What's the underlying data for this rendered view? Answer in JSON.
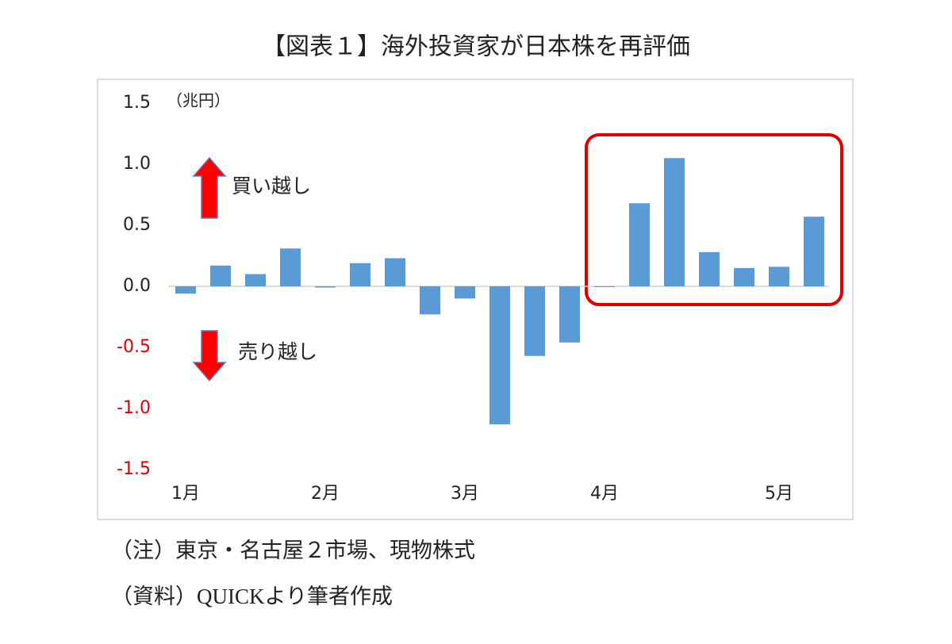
{
  "chart_data": {
    "type": "bar",
    "title": "【図表１】海外投資家が日本株を再評価",
    "unit_label": "（兆円）",
    "annotations": [
      "買い越し",
      "売り越し"
    ],
    "notes": [
      "（注）東京・名古屋２市場、現物株式",
      "（資料）QUICKより筆者作成"
    ],
    "categories": [
      "1月",
      null,
      null,
      null,
      "2月",
      null,
      null,
      null,
      "3月",
      null,
      null,
      null,
      "4月",
      null,
      null,
      null,
      null,
      "5月",
      null
    ],
    "values": [
      -0.06,
      0.17,
      0.1,
      0.31,
      -0.01,
      0.19,
      0.23,
      -0.23,
      -0.1,
      -1.13,
      -0.57,
      -0.46,
      0,
      0.68,
      1.05,
      0.28,
      0.15,
      0.16,
      0.57
    ],
    "color": "#5b9bd5",
    "negative_tick_color": "#e00000",
    "ylim": [
      -1.5,
      1.5
    ],
    "yticks": [
      {
        "value": 1.5,
        "label": "1.5"
      },
      {
        "value": 1,
        "label": "1.0"
      },
      {
        "value": 0.5,
        "label": "0.5"
      },
      {
        "value": 0,
        "label": "0.0"
      },
      {
        "value": -0.5,
        "label": "-0.5"
      },
      {
        "value": -1,
        "label": "-1.0"
      },
      {
        "value": -1.5,
        "label": "-1.5"
      }
    ],
    "grid": false
  }
}
